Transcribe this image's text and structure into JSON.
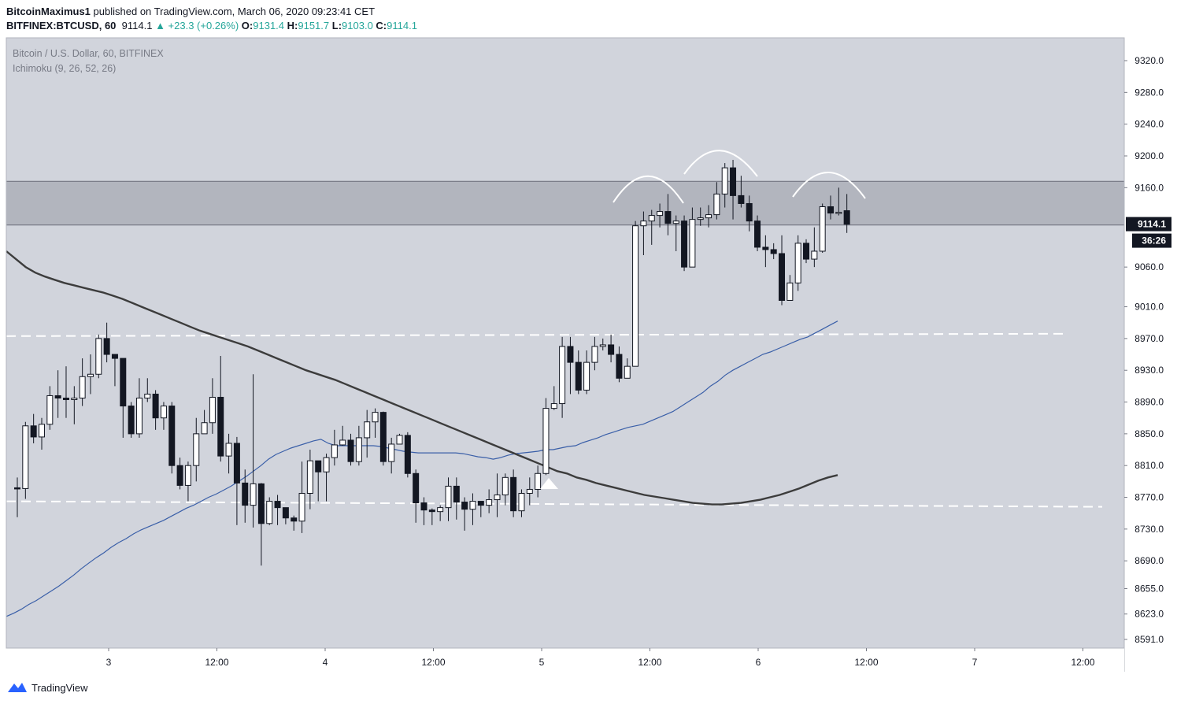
{
  "header": {
    "author": "BitcoinMaximus1",
    "published_text": "published on TradingView.com, March 06, 2020 09:23:41 CET",
    "symbol": "BITFINEX:BTCUSD, 60",
    "last": "9114.1",
    "change": "▲ +23.3 (+0.26%)",
    "o_label": "O:",
    "o_value": "9131.4",
    "h_label": "H:",
    "h_value": "9151.7",
    "l_label": "L:",
    "l_value": "9103.0",
    "c_label": "C:",
    "c_value": "9114.1"
  },
  "legend": {
    "title": "Bitcoin / U.S. Dollar, 60, BITFINEX",
    "indicator": "Ichimoku (9, 26, 52, 26)"
  },
  "footer": {
    "brand": "TradingView"
  },
  "colors": {
    "plot_bg": "#d1d4dc",
    "band": "#b2b5be",
    "up_candle": "#ffffff",
    "down_candle": "#131722",
    "blue_line": "#3a5fa8",
    "dark_line": "#3c3c3c",
    "price_label_bg": "#131722"
  },
  "chart_data": {
    "type": "candlestick",
    "title": "Bitcoin / U.S. Dollar, 60, BITFINEX",
    "price_axis": {
      "ticks": [
        "9320.0",
        "9280.0",
        "9240.0",
        "9200.0",
        "9160.0",
        "9060.0",
        "9010.0",
        "8970.0",
        "8930.0",
        "8890.0",
        "8850.0",
        "8810.0",
        "8770.0",
        "8730.0",
        "8690.0",
        "8655.0",
        "8623.0",
        "8591.0"
      ],
      "ylim": [
        8580,
        9340
      ],
      "current_price": "9114.1",
      "countdown": "36:26"
    },
    "time_axis": {
      "ticks": [
        "3",
        "12:00",
        "4",
        "12:00",
        "5",
        "12:00",
        "6",
        "12:00",
        "7",
        "12:00"
      ]
    },
    "resistance_zone": [
      9113,
      9168
    ],
    "support_levels": [
      8976,
      8764
    ],
    "candles": [
      [
        8782,
        8781,
        8795,
        8745
      ],
      [
        8781,
        8860,
        8865,
        8768
      ],
      [
        8860,
        8846,
        8875,
        8838
      ],
      [
        8846,
        8862,
        8870,
        8830
      ],
      [
        8862,
        8898,
        8910,
        8855
      ],
      [
        8898,
        8895,
        8930,
        8870
      ],
      [
        8895,
        8893,
        8935,
        8870
      ],
      [
        8893,
        8895,
        8910,
        8862
      ],
      [
        8895,
        8922,
        8945,
        8885
      ],
      [
        8922,
        8925,
        8950,
        8900
      ],
      [
        8925,
        8970,
        8975,
        8920
      ],
      [
        8970,
        8950,
        8990,
        8940
      ],
      [
        8950,
        8945,
        8950,
        8910
      ],
      [
        8945,
        8885,
        8945,
        8845
      ],
      [
        8885,
        8850,
        8890,
        8845
      ],
      [
        8850,
        8895,
        8920,
        8845
      ],
      [
        8895,
        8900,
        8920,
        8890
      ],
      [
        8900,
        8870,
        8905,
        8855
      ],
      [
        8870,
        8885,
        8890,
        8855
      ],
      [
        8885,
        8810,
        8890,
        8800
      ],
      [
        8810,
        8785,
        8820,
        8780
      ],
      [
        8785,
        8810,
        8815,
        8765
      ],
      [
        8810,
        8850,
        8870,
        8790
      ],
      [
        8850,
        8864,
        8880,
        8855
      ],
      [
        8864,
        8896,
        8920,
        8850
      ],
      [
        8896,
        8822,
        8948,
        8815
      ],
      [
        8822,
        8838,
        8850,
        8800
      ],
      [
        8838,
        8788,
        8846,
        8735
      ],
      [
        8788,
        8760,
        8805,
        8738
      ],
      [
        8760,
        8787,
        8925,
        8732
      ],
      [
        8787,
        8737,
        8788,
        8684
      ],
      [
        8737,
        8765,
        8770,
        8735
      ],
      [
        8765,
        8757,
        8773,
        8735
      ],
      [
        8757,
        8744,
        8752,
        8736
      ],
      [
        8744,
        8740,
        8747,
        8728
      ],
      [
        8740,
        8775,
        8815,
        8725
      ],
      [
        8775,
        8816,
        8830,
        8755
      ],
      [
        8816,
        8802,
        8808,
        8765
      ],
      [
        8802,
        8820,
        8825,
        8765
      ],
      [
        8820,
        8836,
        8855,
        8810
      ],
      [
        8836,
        8842,
        8860,
        8835
      ],
      [
        8842,
        8815,
        8850,
        8810
      ],
      [
        8815,
        8845,
        8860,
        8810
      ],
      [
        8845,
        8865,
        8880,
        8820
      ],
      [
        8865,
        8877,
        8882,
        8845
      ],
      [
        8877,
        8815,
        8878,
        8810
      ],
      [
        8815,
        8837,
        8845,
        8800
      ],
      [
        8837,
        8848,
        8850,
        8840
      ],
      [
        8848,
        8800,
        8852,
        8795
      ],
      [
        8800,
        8763,
        8805,
        8738
      ],
      [
        8763,
        8754,
        8770,
        8735
      ],
      [
        8754,
        8752,
        8756,
        8735
      ],
      [
        8752,
        8757,
        8760,
        8740
      ],
      [
        8757,
        8784,
        8795,
        8740
      ],
      [
        8784,
        8764,
        8795,
        8742
      ],
      [
        8764,
        8755,
        8770,
        8728
      ],
      [
        8755,
        8765,
        8775,
        8735
      ],
      [
        8765,
        8760,
        8765,
        8745
      ],
      [
        8760,
        8767,
        8780,
        8750
      ],
      [
        8767,
        8773,
        8800,
        8745
      ],
      [
        8773,
        8795,
        8800,
        8760
      ],
      [
        8795,
        8753,
        8805,
        8745
      ],
      [
        8753,
        8775,
        8780,
        8745
      ],
      [
        8775,
        8780,
        8795,
        8760
      ],
      [
        8780,
        8800,
        8810,
        8770
      ],
      [
        8800,
        8882,
        8895,
        8798
      ],
      [
        8882,
        8888,
        8910,
        8880
      ],
      [
        8888,
        8960,
        8972,
        8870
      ],
      [
        8960,
        8940,
        8972,
        8900
      ],
      [
        8940,
        8905,
        8955,
        8900
      ],
      [
        8905,
        8940,
        8955,
        8900
      ],
      [
        8940,
        8960,
        8972,
        8930
      ],
      [
        8960,
        8962,
        8970,
        8955
      ],
      [
        8962,
        8950,
        8975,
        8940
      ],
      [
        8950,
        8920,
        8960,
        8915
      ],
      [
        8920,
        8935,
        8945,
        8925
      ],
      [
        8935,
        9112,
        9118,
        8935
      ],
      [
        9112,
        9118,
        9130,
        9075
      ],
      [
        9118,
        9125,
        9132,
        9088
      ],
      [
        9125,
        9130,
        9140,
        9110
      ],
      [
        9130,
        9115,
        9152,
        9100
      ],
      [
        9115,
        9118,
        9125,
        9080
      ],
      [
        9118,
        9060,
        9125,
        9055
      ],
      [
        9060,
        9120,
        9135,
        9060
      ],
      [
        9120,
        9122,
        9135,
        9112
      ],
      [
        9122,
        9126,
        9138,
        9110
      ],
      [
        9126,
        9152,
        9167,
        9120
      ],
      [
        9152,
        9185,
        9191,
        9135
      ],
      [
        9185,
        9150,
        9195,
        9120
      ],
      [
        9150,
        9140,
        9175,
        9135
      ],
      [
        9140,
        9118,
        9150,
        9105
      ],
      [
        9118,
        9085,
        9125,
        9080
      ],
      [
        9085,
        9082,
        9100,
        9060
      ],
      [
        9082,
        9077,
        9090,
        9070
      ],
      [
        9077,
        9018,
        9100,
        9012
      ],
      [
        9018,
        9040,
        9050,
        9020
      ],
      [
        9040,
        9090,
        9100,
        9030
      ],
      [
        9090,
        9070,
        9095,
        9065
      ],
      [
        9070,
        9080,
        9110,
        9060
      ],
      [
        9080,
        9136,
        9140,
        9078
      ],
      [
        9136,
        9128,
        9150,
        9120
      ],
      [
        9128,
        9129,
        9160,
        9125
      ],
      [
        9131,
        9114,
        9152,
        9103
      ]
    ],
    "series": [
      {
        "values": [
          8620,
          8624,
          8629,
          8635,
          8640,
          8646,
          8652,
          8658,
          8665,
          8672,
          8680,
          8687,
          8694,
          8700,
          8707,
          8713,
          8718,
          8724,
          8729,
          8733,
          8737,
          8741,
          8746,
          8751,
          8756,
          8760,
          8765,
          8770,
          8774,
          8779,
          8784,
          8790,
          8796,
          8803,
          8810,
          8818,
          8824,
          8828,
          8832,
          8835,
          8838,
          8841,
          8843,
          8838,
          8835,
          8835,
          8835,
          8835,
          8835,
          8835,
          8834,
          8832,
          8830,
          8828,
          8827,
          8826,
          8826,
          8826,
          8826,
          8826,
          8826,
          8825,
          8823,
          8821,
          8820,
          8818,
          8820,
          8823,
          8825,
          8826,
          8827,
          8828,
          8830,
          8830,
          8832,
          8834,
          8835,
          8839,
          8842,
          8845,
          8849,
          8852,
          8855,
          8858,
          8860,
          8862,
          8866,
          8870,
          8874,
          8878,
          8884,
          8890,
          8896,
          8902,
          8910,
          8916,
          8924,
          8930,
          8935,
          8940,
          8945,
          8950,
          8953,
          8957,
          8961,
          8965,
          8969,
          8972,
          8977,
          8982,
          8987,
          8992
        ]
      },
      {
        "values": [
          9080,
          9070,
          9060,
          9053,
          9048,
          9044,
          9040,
          9037,
          9034,
          9031,
          9028,
          9024,
          9020,
          9015,
          9010,
          9005,
          9000,
          8995,
          8990,
          8985,
          8980,
          8976,
          8972,
          8968,
          8964,
          8960,
          8955,
          8950,
          8945,
          8940,
          8935,
          8930,
          8926,
          8922,
          8918,
          8913,
          8908,
          8903,
          8898,
          8893,
          8888,
          8883,
          8878,
          8873,
          8868,
          8863,
          8858,
          8853,
          8848,
          8843,
          8838,
          8833,
          8828,
          8823,
          8818,
          8813,
          8808,
          8803,
          8800,
          8795,
          8792,
          8788,
          8785,
          8782,
          8779,
          8776,
          8773,
          8771,
          8769,
          8767,
          8765,
          8763,
          8762,
          8761,
          8761,
          8762,
          8763,
          8765,
          8767,
          8770,
          8773,
          8777,
          8781,
          8786,
          8791,
          8795,
          8798
        ]
      }
    ],
    "annotations": {
      "arc_shapes": 3,
      "marker": "up-triangle"
    }
  }
}
